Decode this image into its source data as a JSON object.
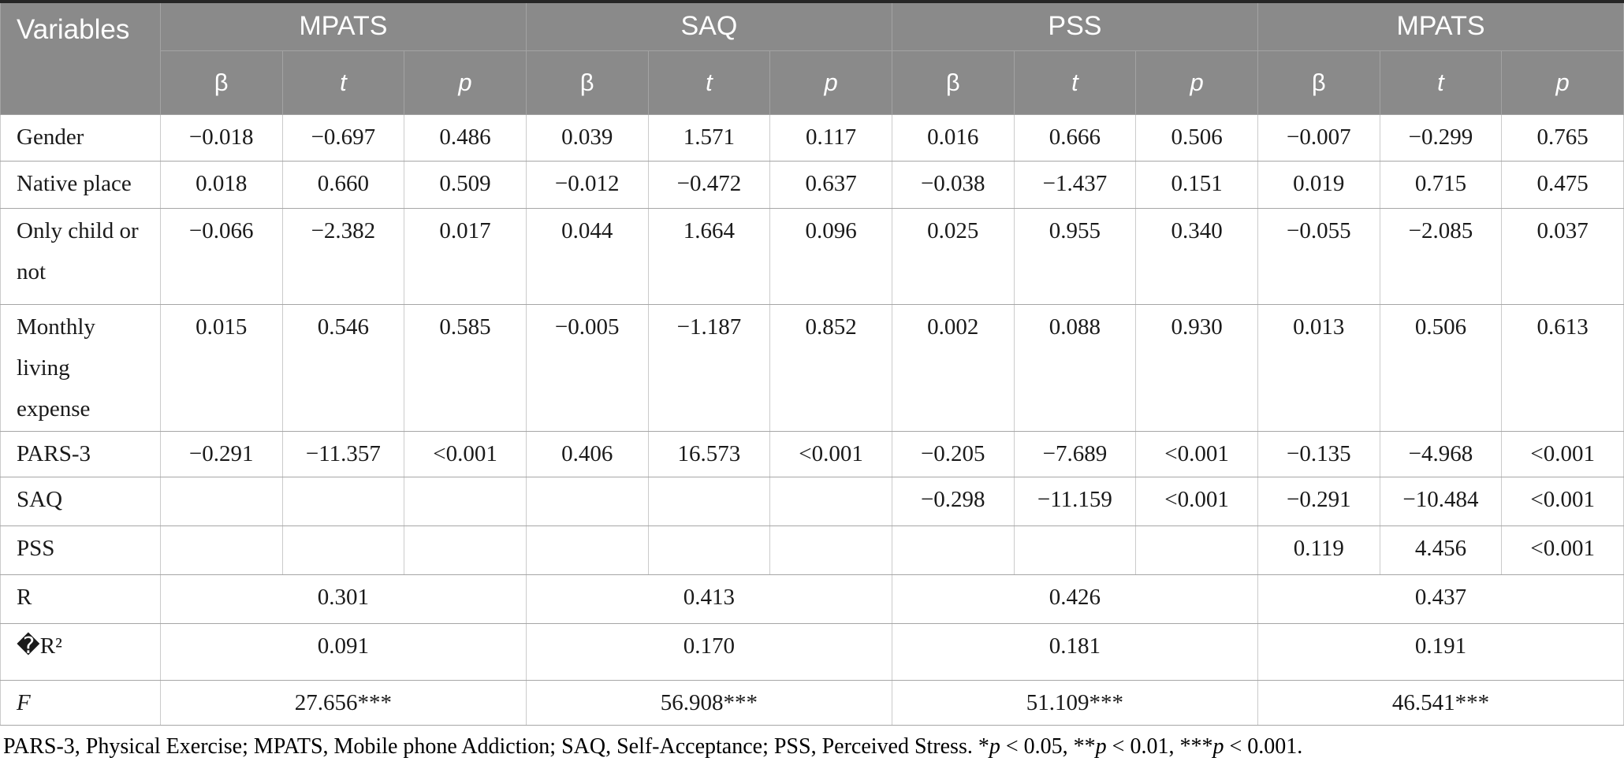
{
  "table": {
    "corner_label": "Variables",
    "groups": [
      {
        "label": "MPATS",
        "name": "mpats-1"
      },
      {
        "label": "SAQ",
        "name": "saq"
      },
      {
        "label": "PSS",
        "name": "pss"
      },
      {
        "label": "MPATS",
        "name": "mpats-2"
      }
    ],
    "sub_headers": [
      {
        "label": "β",
        "name": "beta",
        "italic": false
      },
      {
        "label": "t",
        "name": "t",
        "italic": true
      },
      {
        "label": "p",
        "name": "p",
        "italic": true
      }
    ],
    "rows": [
      {
        "label": "Gender",
        "italic": false,
        "values": [
          "−0.018",
          "−0.697",
          "0.486",
          "0.039",
          "1.571",
          "0.117",
          "0.016",
          "0.666",
          "0.506",
          "−0.007",
          "−0.299",
          "0.765"
        ]
      },
      {
        "label": "Native place",
        "italic": false,
        "values": [
          "0.018",
          "0.660",
          "0.509",
          "−0.012",
          "−0.472",
          "0.637",
          "−0.038",
          "−1.437",
          "0.151",
          "0.019",
          "0.715",
          "0.475"
        ]
      },
      {
        "label": "Only child or not",
        "italic": false,
        "values": [
          "−0.066",
          "−2.382",
          "0.017",
          "0.044",
          "1.664",
          "0.096",
          "0.025",
          "0.955",
          "0.340",
          "−0.055",
          "−2.085",
          "0.037"
        ]
      },
      {
        "label": "Monthly living expense",
        "italic": false,
        "values": [
          "0.015",
          "0.546",
          "0.585",
          "−0.005",
          "−1.187",
          "0.852",
          "0.002",
          "0.088",
          "0.930",
          "0.013",
          "0.506",
          "0.613"
        ]
      },
      {
        "label": "PARS-3",
        "italic": false,
        "values": [
          "−0.291",
          "−11.357",
          "<0.001",
          "0.406",
          "16.573",
          "<0.001",
          "−0.205",
          "−7.689",
          "<0.001",
          "−0.135",
          "−4.968",
          "<0.001"
        ]
      },
      {
        "label": "SAQ",
        "italic": false,
        "values": [
          "",
          "",
          "",
          "",
          "",
          "",
          "−0.298",
          "−11.159",
          "<0.001",
          "−0.291",
          "−10.484",
          "<0.001"
        ]
      },
      {
        "label": "PSS",
        "italic": false,
        "values": [
          "",
          "",
          "",
          "",
          "",
          "",
          "",
          "",
          "",
          "0.119",
          "4.456",
          "<0.001"
        ]
      }
    ],
    "summary_rows": [
      {
        "label": "R",
        "italic": false,
        "values": [
          "0.301",
          "0.413",
          "0.426",
          "0.437"
        ]
      },
      {
        "label": "�R²",
        "italic": false,
        "values": [
          "0.091",
          "0.170",
          "0.181",
          "0.191"
        ]
      },
      {
        "label": "F",
        "italic": true,
        "values": [
          "27.656***",
          "56.908***",
          "51.109***",
          "46.541***"
        ]
      }
    ],
    "footnote_segments": [
      {
        "text": "PARS-3, Physical Exercise; MPATS, Mobile phone Addiction; SAQ, Self-Acceptance; PSS, Perceived Stress. *",
        "italic": false
      },
      {
        "text": "p",
        "italic": true
      },
      {
        "text": " < 0.05, **",
        "italic": false
      },
      {
        "text": "p",
        "italic": true
      },
      {
        "text": " < 0.01, ***",
        "italic": false
      },
      {
        "text": "p",
        "italic": true
      },
      {
        "text": " < 0.001.",
        "italic": false
      }
    ]
  },
  "colors": {
    "header_bg": "#8a8a8a",
    "header_text": "#ffffff",
    "header_border": "#a3a3a3",
    "grid_vertical": "#cbcbcb",
    "grid_horizontal": "#a6a6a6",
    "top_rule": "#262626",
    "body_text": "#1a1a1a"
  }
}
